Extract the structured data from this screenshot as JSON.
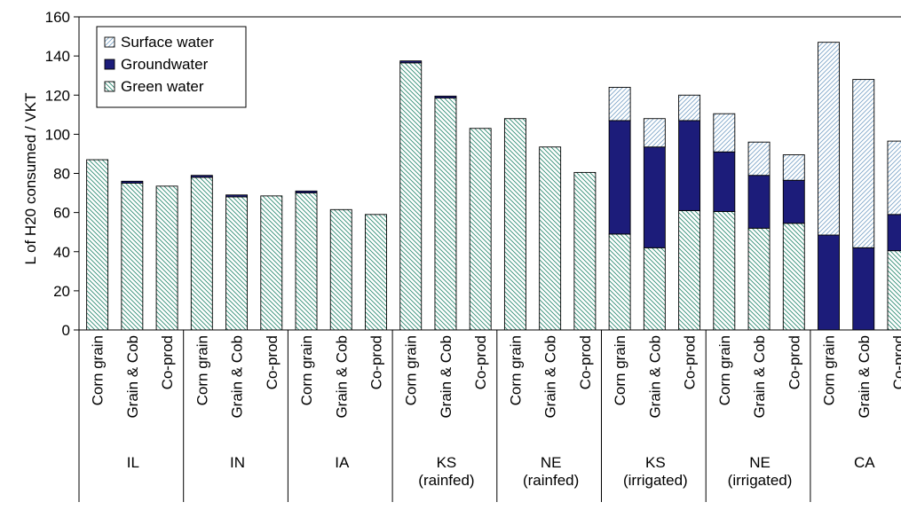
{
  "chart_data": {
    "type": "bar",
    "stacked": true,
    "ylabel": "L of H20 consumed / VKT",
    "ylim": [
      0,
      160
    ],
    "yticks": [
      0,
      20,
      40,
      60,
      80,
      100,
      120,
      140,
      160
    ],
    "grid": false,
    "legend_position": "top-left",
    "groups": [
      {
        "label": [
          "IL"
        ],
        "categories": [
          "Corn grain",
          "Grain & Cob",
          "Co-prod"
        ]
      },
      {
        "label": [
          "IN"
        ],
        "categories": [
          "Corn grain",
          "Grain & Cob",
          "Co-prod"
        ]
      },
      {
        "label": [
          "IA"
        ],
        "categories": [
          "Corn grain",
          "Grain & Cob",
          "Co-prod"
        ]
      },
      {
        "label": [
          "KS",
          "(rainfed)"
        ],
        "categories": [
          "Corn grain",
          "Grain & Cob",
          "Co-prod"
        ]
      },
      {
        "label": [
          "NE",
          "(rainfed)"
        ],
        "categories": [
          "Corn grain",
          "Grain & Cob",
          "Co-prod"
        ]
      },
      {
        "label": [
          "KS",
          "(irrigated)"
        ],
        "categories": [
          "Corn grain",
          "Grain & Cob",
          "Co-prod"
        ]
      },
      {
        "label": [
          "NE",
          "(irrigated)"
        ],
        "categories": [
          "Corn grain",
          "Grain & Cob",
          "Co-prod"
        ]
      },
      {
        "label": [
          "CA"
        ],
        "categories": [
          "Corn grain",
          "Grain & Cob",
          "Co-prod"
        ]
      }
    ],
    "series": [
      {
        "name": "Green water",
        "key": "green",
        "values": [
          87,
          75,
          73.5,
          78,
          68,
          68.5,
          70,
          61.5,
          59,
          136.5,
          118.5,
          103,
          108,
          93.5,
          80.5,
          49,
          42,
          61,
          60.5,
          52,
          54.5,
          0,
          0,
          40.5
        ]
      },
      {
        "name": "Groundwater",
        "key": "ground",
        "values": [
          0,
          1,
          0,
          1,
          1,
          0,
          1,
          0,
          0,
          1,
          1,
          0,
          0,
          0,
          0,
          58,
          51.5,
          46,
          30.5,
          27,
          22,
          48.5,
          42,
          18.5
        ]
      },
      {
        "name": "Surface water",
        "key": "surface",
        "values": [
          0,
          0,
          0,
          0,
          0,
          0,
          0,
          0,
          0,
          0,
          0,
          0,
          0,
          0,
          0,
          17,
          14.5,
          13,
          19.5,
          17,
          13,
          98.5,
          86,
          37.5
        ]
      }
    ],
    "legend": [
      "Surface water",
      "Groundwater",
      "Green water"
    ],
    "colors": {
      "green": "#2e8b73",
      "ground": "#1c1c7a",
      "surface": "#7fa6c9",
      "frame": "#000000"
    }
  }
}
